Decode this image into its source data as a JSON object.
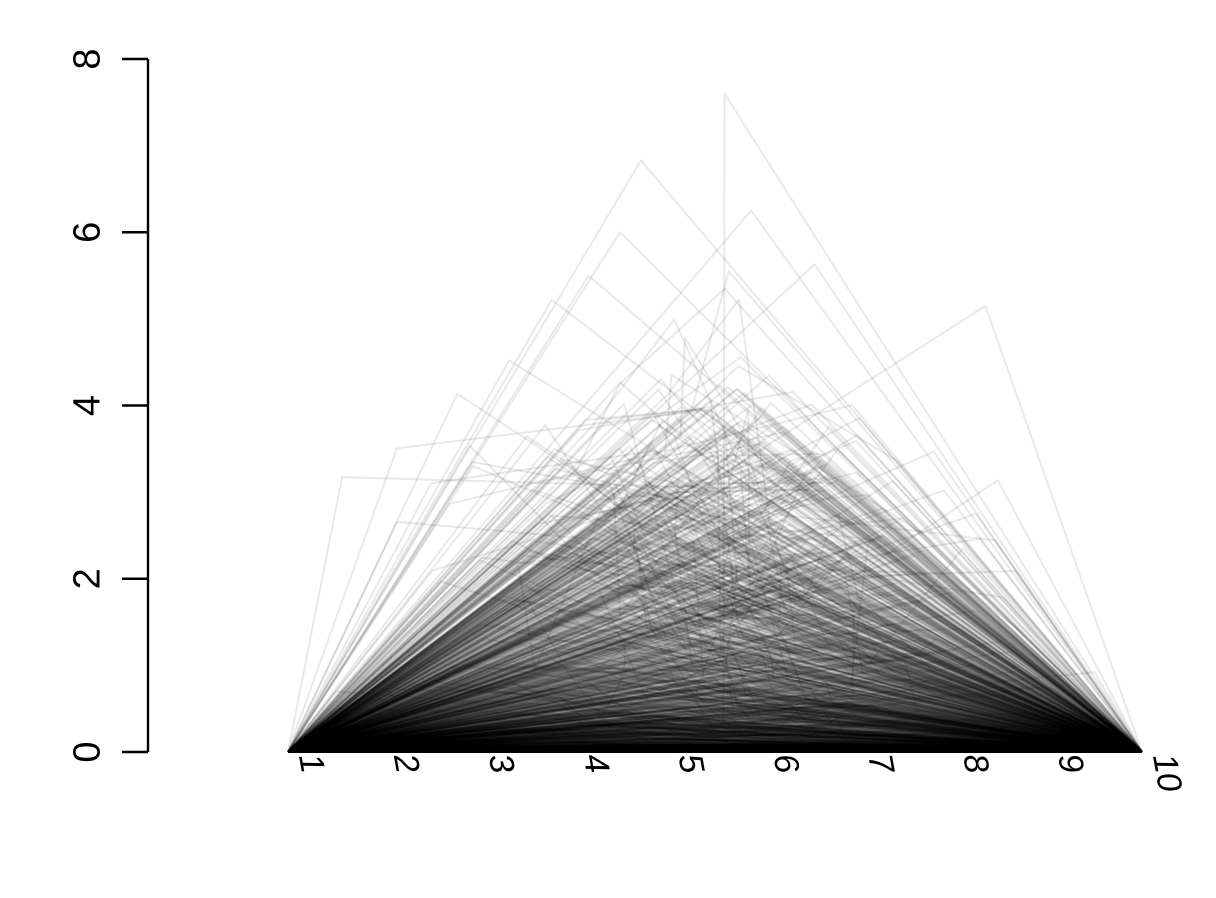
{
  "chart_data": {
    "type": "line",
    "title": "",
    "xlabel": "",
    "ylabel": "",
    "x_ticks": [
      "1",
      "2",
      "3",
      "4",
      "5",
      "6",
      "7",
      "8",
      "9",
      "10"
    ],
    "xlim": [
      1,
      10
    ],
    "y_ticks": [
      "0",
      "2",
      "4",
      "6",
      "8"
    ],
    "ylim": [
      0,
      8
    ],
    "grid": false,
    "legend": "none",
    "series_color": "#000000",
    "line_alpha": 0.1,
    "n_series": 1500,
    "highlight_series": [
      {
        "x": [
          1,
          4.72,
          10
        ],
        "y": [
          0,
          6.83,
          0
        ]
      },
      {
        "x": [
          1,
          5.59,
          5.6,
          10
        ],
        "y": [
          0,
          0.3,
          7.6,
          0
        ]
      },
      {
        "x": [
          1,
          5.88,
          10
        ],
        "y": [
          0,
          6.25,
          0
        ]
      },
      {
        "x": [
          1,
          4.5,
          10
        ],
        "y": [
          0,
          6.0,
          0
        ]
      },
      {
        "x": [
          1,
          6.55,
          10
        ],
        "y": [
          0,
          5.63,
          0
        ]
      },
      {
        "x": [
          1,
          4.17,
          10
        ],
        "y": [
          0,
          5.5,
          0
        ]
      },
      {
        "x": [
          1,
          3.78,
          10
        ],
        "y": [
          0,
          5.22,
          0
        ]
      },
      {
        "x": [
          1,
          8.35,
          10
        ],
        "y": [
          0,
          5.15,
          0
        ]
      },
      {
        "x": [
          1,
          3.33,
          10
        ],
        "y": [
          0,
          4.52,
          0
        ]
      },
      {
        "x": [
          1,
          2.95,
          10
        ],
        "y": [
          0,
          3.3,
          0
        ]
      },
      {
        "x": [
          1,
          8.25,
          10
        ],
        "y": [
          0,
          2.75,
          0
        ]
      },
      {
        "x": [
          1,
          9.5,
          10
        ],
        "y": [
          0,
          0.92,
          0
        ]
      },
      {
        "x": [
          1,
          1.5,
          10
        ],
        "y": [
          0,
          0.7,
          0
        ]
      }
    ]
  }
}
